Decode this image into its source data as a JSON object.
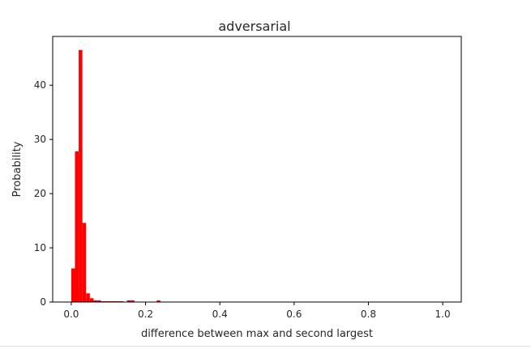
{
  "chart_data": {
    "type": "bar",
    "title": "adversarial",
    "xlabel": "difference between max and second largest",
    "ylabel": "Probability",
    "xlim": [
      -0.05,
      1.05
    ],
    "ylim": [
      0,
      49
    ],
    "xticks": [
      0.0,
      0.2,
      0.4,
      0.6,
      0.8,
      1.0
    ],
    "xtick_labels": [
      "0.0",
      "0.2",
      "0.4",
      "0.6",
      "0.8",
      "1.0"
    ],
    "yticks": [
      0,
      10,
      20,
      30,
      40
    ],
    "ytick_labels": [
      "0",
      "10",
      "20",
      "30",
      "40"
    ],
    "bin_width": 0.01,
    "bins": [
      {
        "x0": 0.0,
        "value": 6.2
      },
      {
        "x0": 0.01,
        "value": 27.8
      },
      {
        "x0": 0.02,
        "value": 46.5
      },
      {
        "x0": 0.03,
        "value": 14.6
      },
      {
        "x0": 0.04,
        "value": 1.6
      },
      {
        "x0": 0.05,
        "value": 0.7
      },
      {
        "x0": 0.06,
        "value": 0.3
      },
      {
        "x0": 0.07,
        "value": 0.3
      },
      {
        "x0": 0.08,
        "value": 0.15
      },
      {
        "x0": 0.09,
        "value": 0.15
      },
      {
        "x0": 0.1,
        "value": 0.15
      },
      {
        "x0": 0.11,
        "value": 0.15
      },
      {
        "x0": 0.12,
        "value": 0.15
      },
      {
        "x0": 0.13,
        "value": 0.15
      },
      {
        "x0": 0.15,
        "value": 0.3
      },
      {
        "x0": 0.16,
        "value": 0.3
      },
      {
        "x0": 0.23,
        "value": 0.3
      }
    ],
    "grid": false,
    "bar_color": "#ff0000",
    "axis_color": "#000000"
  }
}
